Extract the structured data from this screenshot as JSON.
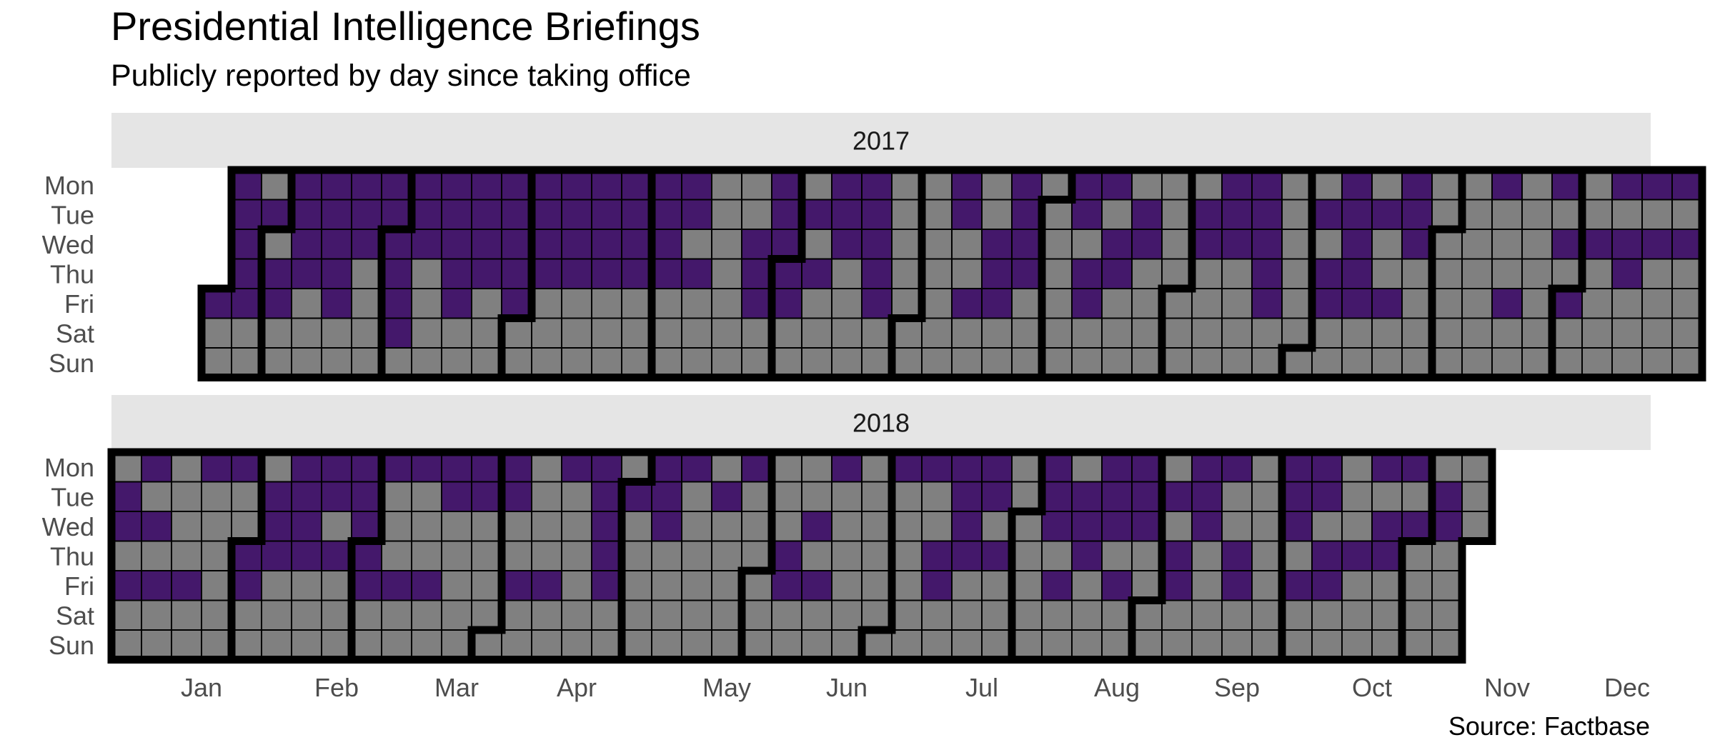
{
  "title": "Presidential Intelligence Briefings",
  "subtitle": "Publicly reported by day since taking office",
  "caption": "Source: Factbase",
  "colors": {
    "briefing": "#44186B",
    "no_briefing": "#808080",
    "panel_strip": "#E5E5E5",
    "month_border": "#000000",
    "grid_line": "#000000",
    "axis_text": "#4D4D4D",
    "background": "#FFFFFF"
  },
  "chart_data": {
    "type": "heatmap",
    "layout": "calendar",
    "title": "Presidential Intelligence Briefings",
    "subtitle": "Publicly reported by day since taking office",
    "caption": "Source: Factbase",
    "weekdays": [
      "Mon",
      "Tue",
      "Wed",
      "Thu",
      "Fri",
      "Sat",
      "Sun"
    ],
    "months": [
      "Jan",
      "Feb",
      "Mar",
      "Apr",
      "May",
      "Jun",
      "Jul",
      "Aug",
      "Sep",
      "Oct",
      "Nov",
      "Dec"
    ],
    "legend": "none",
    "grid": false,
    "values": "1 = briefing publicly reported that day (purple), 0 = no reported briefing (grey)",
    "panels": [
      {
        "year": "2017",
        "start_date": "2017-01-20",
        "end_date": "2017-12-31",
        "briefing_days": [
          "2017-01-20",
          "2017-01-23",
          "2017-01-24",
          "2017-01-25",
          "2017-01-26",
          "2017-01-27",
          "2017-01-31",
          "2017-02-02",
          "2017-02-03",
          "2017-02-06",
          "2017-02-07",
          "2017-02-08",
          "2017-02-09",
          "2017-02-13",
          "2017-02-14",
          "2017-02-15",
          "2017-02-16",
          "2017-02-17",
          "2017-02-20",
          "2017-02-21",
          "2017-02-22",
          "2017-02-27",
          "2017-02-28",
          "2017-03-01",
          "2017-03-02",
          "2017-03-03",
          "2017-03-04",
          "2017-03-06",
          "2017-03-07",
          "2017-03-08",
          "2017-03-13",
          "2017-03-14",
          "2017-03-15",
          "2017-03-16",
          "2017-03-17",
          "2017-03-20",
          "2017-03-21",
          "2017-03-22",
          "2017-03-23",
          "2017-03-27",
          "2017-03-28",
          "2017-03-29",
          "2017-03-30",
          "2017-03-31",
          "2017-04-03",
          "2017-04-04",
          "2017-04-05",
          "2017-04-06",
          "2017-04-10",
          "2017-04-11",
          "2017-04-12",
          "2017-04-13",
          "2017-04-17",
          "2017-04-18",
          "2017-04-19",
          "2017-04-20",
          "2017-04-24",
          "2017-04-25",
          "2017-04-26",
          "2017-04-27",
          "2017-05-01",
          "2017-05-02",
          "2017-05-03",
          "2017-05-04",
          "2017-05-08",
          "2017-05-09",
          "2017-05-11",
          "2017-05-24",
          "2017-05-25",
          "2017-05-26",
          "2017-05-29",
          "2017-05-30",
          "2017-05-31",
          "2017-06-01",
          "2017-06-02",
          "2017-06-06",
          "2017-06-08",
          "2017-06-12",
          "2017-06-13",
          "2017-06-14",
          "2017-06-19",
          "2017-06-20",
          "2017-06-21",
          "2017-06-22",
          "2017-06-23",
          "2017-07-10",
          "2017-07-11",
          "2017-07-14",
          "2017-07-19",
          "2017-07-20",
          "2017-07-21",
          "2017-07-24",
          "2017-07-25",
          "2017-07-26",
          "2017-07-27",
          "2017-08-07",
          "2017-08-08",
          "2017-08-10",
          "2017-08-11",
          "2017-08-14",
          "2017-08-16",
          "2017-08-17",
          "2017-08-22",
          "2017-08-23",
          "2017-09-05",
          "2017-09-06",
          "2017-09-11",
          "2017-09-12",
          "2017-09-13",
          "2017-09-18",
          "2017-09-19",
          "2017-09-20",
          "2017-09-21",
          "2017-09-22",
          "2017-10-03",
          "2017-10-05",
          "2017-10-06",
          "2017-10-09",
          "2017-10-10",
          "2017-10-11",
          "2017-10-12",
          "2017-10-13",
          "2017-10-17",
          "2017-10-20",
          "2017-10-23",
          "2017-10-24",
          "2017-10-25",
          "2017-11-13",
          "2017-11-17",
          "2017-11-27",
          "2017-11-29",
          "2017-12-01",
          "2017-12-06",
          "2017-12-11",
          "2017-12-13",
          "2017-12-14",
          "2017-12-18",
          "2017-12-20",
          "2017-12-25",
          "2017-12-27"
        ]
      },
      {
        "year": "2018",
        "start_date": "2018-01-01",
        "end_date": "2018-11-14",
        "briefing_days": [
          "2018-01-02",
          "2018-01-03",
          "2018-01-05",
          "2018-01-08",
          "2018-01-10",
          "2018-01-12",
          "2018-01-19",
          "2018-01-22",
          "2018-01-29",
          "2018-02-01",
          "2018-02-02",
          "2018-02-06",
          "2018-02-07",
          "2018-02-08",
          "2018-02-12",
          "2018-02-13",
          "2018-02-14",
          "2018-02-15",
          "2018-02-19",
          "2018-02-20",
          "2018-02-22",
          "2018-02-26",
          "2018-02-27",
          "2018-02-28",
          "2018-03-01",
          "2018-03-02",
          "2018-03-05",
          "2018-03-09",
          "2018-03-12",
          "2018-03-16",
          "2018-03-19",
          "2018-03-20",
          "2018-03-26",
          "2018-03-27",
          "2018-04-02",
          "2018-04-03",
          "2018-04-06",
          "2018-04-13",
          "2018-04-16",
          "2018-04-23",
          "2018-04-24",
          "2018-04-25",
          "2018-04-26",
          "2018-04-27",
          "2018-05-01",
          "2018-05-07",
          "2018-05-08",
          "2018-05-09",
          "2018-05-14",
          "2018-05-22",
          "2018-05-28",
          "2018-06-07",
          "2018-06-08",
          "2018-06-13",
          "2018-06-15",
          "2018-06-18",
          "2018-07-02",
          "2018-07-09",
          "2018-07-12",
          "2018-07-13",
          "2018-07-16",
          "2018-07-17",
          "2018-07-18",
          "2018-07-19",
          "2018-07-23",
          "2018-07-24",
          "2018-07-26",
          "2018-08-06",
          "2018-08-07",
          "2018-08-08",
          "2018-08-10",
          "2018-08-14",
          "2018-08-15",
          "2018-08-16",
          "2018-08-20",
          "2018-08-21",
          "2018-08-22",
          "2018-08-24",
          "2018-08-27",
          "2018-08-28",
          "2018-08-29",
          "2018-09-04",
          "2018-09-06",
          "2018-09-07",
          "2018-09-10",
          "2018-09-11",
          "2018-09-12",
          "2018-09-17",
          "2018-09-20",
          "2018-09-21",
          "2018-10-01",
          "2018-10-02",
          "2018-10-03",
          "2018-10-05",
          "2018-10-08",
          "2018-10-09",
          "2018-10-11",
          "2018-10-12",
          "2018-10-18",
          "2018-10-22",
          "2018-10-24",
          "2018-10-25",
          "2018-10-29",
          "2018-10-31",
          "2018-11-06",
          "2018-11-07"
        ]
      }
    ]
  }
}
